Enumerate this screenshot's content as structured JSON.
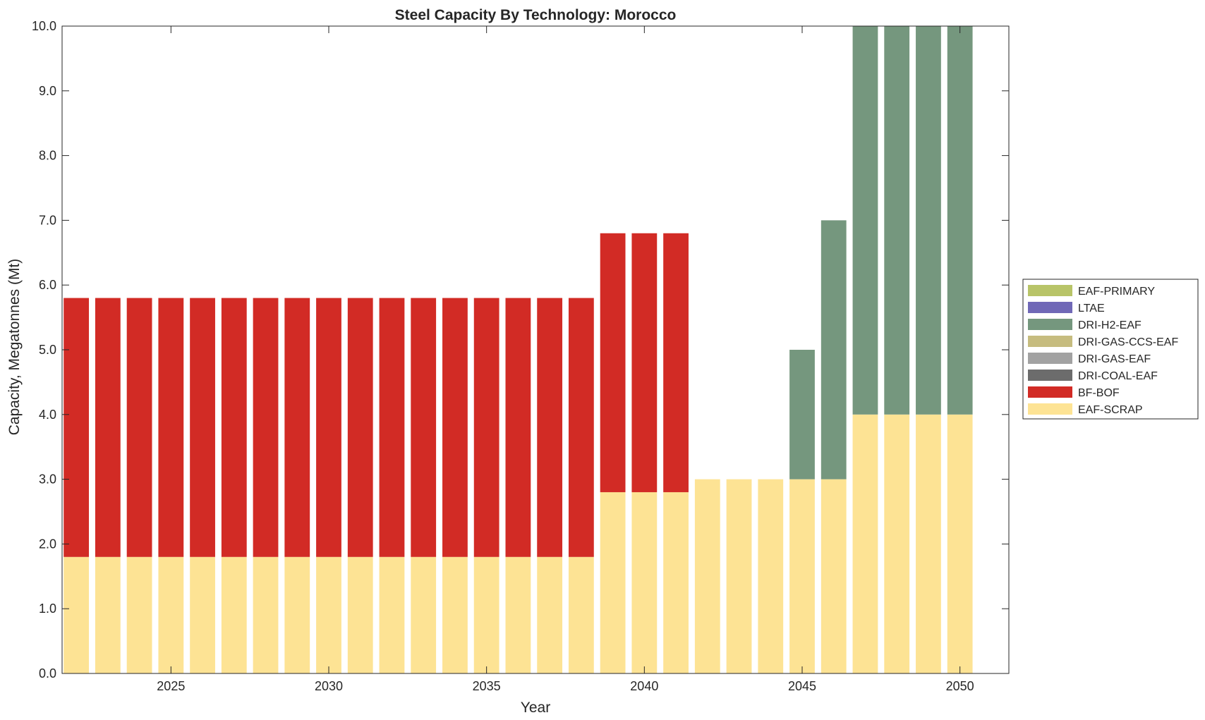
{
  "chart_data": {
    "type": "bar",
    "stacked": true,
    "title": "Steel Capacity By Technology: Morocco",
    "xlabel": "Year",
    "ylabel": "Capacity, Megatonnes (Mt)",
    "xlim": [
      2021.55,
      2051.55
    ],
    "ylim": [
      0,
      10
    ],
    "x_ticks": [
      "2025",
      "2030",
      "2035",
      "2040",
      "2045",
      "2050"
    ],
    "y_ticks": [
      "0.0",
      "1.0",
      "2.0",
      "3.0",
      "4.0",
      "5.0",
      "6.0",
      "7.0",
      "8.0",
      "9.0",
      "10.0"
    ],
    "legend_position": "outside-right",
    "categories": [
      2022,
      2023,
      2024,
      2025,
      2026,
      2027,
      2028,
      2029,
      2030,
      2031,
      2032,
      2033,
      2034,
      2035,
      2036,
      2037,
      2038,
      2039,
      2040,
      2041,
      2042,
      2043,
      2044,
      2045,
      2046,
      2047,
      2048,
      2049,
      2050
    ],
    "series": [
      {
        "name": "EAF-SCRAP",
        "color": "#fde394",
        "values": [
          1.8,
          1.8,
          1.8,
          1.8,
          1.8,
          1.8,
          1.8,
          1.8,
          1.8,
          1.8,
          1.8,
          1.8,
          1.8,
          1.8,
          1.8,
          1.8,
          1.8,
          2.8,
          2.8,
          2.8,
          3,
          3,
          3,
          3,
          3,
          4,
          4,
          4,
          4
        ]
      },
      {
        "name": "BF-BOF",
        "color": "#d22b25",
        "values": [
          4,
          4,
          4,
          4,
          4,
          4,
          4,
          4,
          4,
          4,
          4,
          4,
          4,
          4,
          4,
          4,
          4,
          4,
          4,
          4,
          0,
          0,
          0,
          0,
          0,
          0,
          0,
          0,
          0
        ]
      },
      {
        "name": "DRI-COAL-EAF",
        "color": "#6c6c6c",
        "values": [
          0,
          0,
          0,
          0,
          0,
          0,
          0,
          0,
          0,
          0,
          0,
          0,
          0,
          0,
          0,
          0,
          0,
          0,
          0,
          0,
          0,
          0,
          0,
          0,
          0,
          0,
          0,
          0,
          0
        ]
      },
      {
        "name": "DRI-GAS-EAF",
        "color": "#a2a2a2",
        "values": [
          0,
          0,
          0,
          0,
          0,
          0,
          0,
          0,
          0,
          0,
          0,
          0,
          0,
          0,
          0,
          0,
          0,
          0,
          0,
          0,
          0,
          0,
          0,
          0,
          0,
          0,
          0,
          0,
          0
        ]
      },
      {
        "name": "DRI-GAS-CCS-EAF",
        "color": "#c6bc7f",
        "values": [
          0,
          0,
          0,
          0,
          0,
          0,
          0,
          0,
          0,
          0,
          0,
          0,
          0,
          0,
          0,
          0,
          0,
          0,
          0,
          0,
          0,
          0,
          0,
          0,
          0,
          0,
          0,
          0,
          0
        ]
      },
      {
        "name": "DRI-H2-EAF",
        "color": "#75977e",
        "values": [
          0,
          0,
          0,
          0,
          0,
          0,
          0,
          0,
          0,
          0,
          0,
          0,
          0,
          0,
          0,
          0,
          0,
          0,
          0,
          0,
          0,
          0,
          0,
          2,
          4,
          6,
          6,
          6,
          6
        ]
      },
      {
        "name": "LTAE",
        "color": "#7068b7",
        "values": [
          0,
          0,
          0,
          0,
          0,
          0,
          0,
          0,
          0,
          0,
          0,
          0,
          0,
          0,
          0,
          0,
          0,
          0,
          0,
          0,
          0,
          0,
          0,
          0,
          0,
          0,
          0,
          0,
          0
        ]
      },
      {
        "name": "EAF-PRIMARY",
        "color": "#b8c468",
        "values": [
          0,
          0,
          0,
          0,
          0,
          0,
          0,
          0,
          0,
          0,
          0,
          0,
          0,
          0,
          0,
          0,
          0,
          0,
          0,
          0,
          0,
          0,
          0,
          0,
          0,
          0,
          0,
          0,
          0
        ]
      }
    ]
  }
}
